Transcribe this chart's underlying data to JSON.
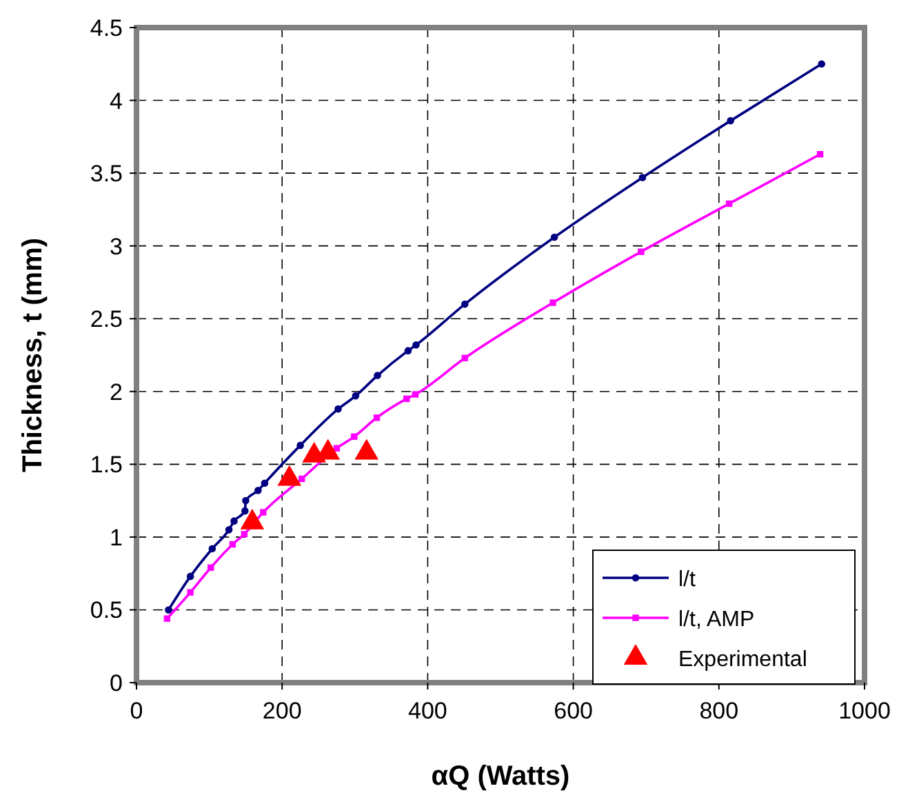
{
  "chart_data": {
    "type": "line",
    "xlabel": "αQ (Watts)",
    "ylabel": "Thickness, t (mm)",
    "xlim": [
      0,
      1000
    ],
    "xticks": [
      0,
      200,
      400,
      600,
      800,
      1000
    ],
    "ylim": [
      0,
      4.5
    ],
    "yticks": [
      0,
      0.5,
      1,
      1.5,
      2,
      2.5,
      3,
      3.5,
      4,
      4.5
    ],
    "grid": true,
    "legend": "bottom right",
    "line_style": "solid",
    "series": [
      {
        "name": "l/t",
        "color": "#000080",
        "marker": "circle",
        "x": [
          44,
          74,
          104,
          127,
          134,
          149,
          150,
          167,
          176,
          225,
          277,
          301,
          331,
          373,
          384,
          451,
          574,
          695,
          816,
          941
        ],
        "values": [
          0.5,
          0.73,
          0.92,
          1.05,
          1.11,
          1.18,
          1.25,
          1.32,
          1.37,
          1.63,
          1.88,
          1.97,
          2.11,
          2.28,
          2.32,
          2.6,
          3.06,
          3.47,
          3.86,
          4.25
        ]
      },
      {
        "name": "l/t, AMP",
        "color": "#ff00ff",
        "marker": "square",
        "x": [
          42,
          74,
          102,
          132,
          148,
          174,
          227,
          275,
          299,
          330,
          371,
          383,
          451,
          572,
          693,
          814,
          939
        ],
        "values": [
          0.44,
          0.62,
          0.79,
          0.95,
          1.02,
          1.17,
          1.4,
          1.61,
          1.69,
          1.82,
          1.95,
          1.98,
          2.23,
          2.61,
          2.96,
          3.29,
          3.63
        ]
      },
      {
        "name": "Experimental",
        "type": "scatter",
        "color": "#ff0000",
        "marker": "triangle",
        "x": [
          159,
          210,
          244,
          263,
          316
        ],
        "values": [
          1.1,
          1.4,
          1.56,
          1.58,
          1.58
        ]
      }
    ]
  }
}
